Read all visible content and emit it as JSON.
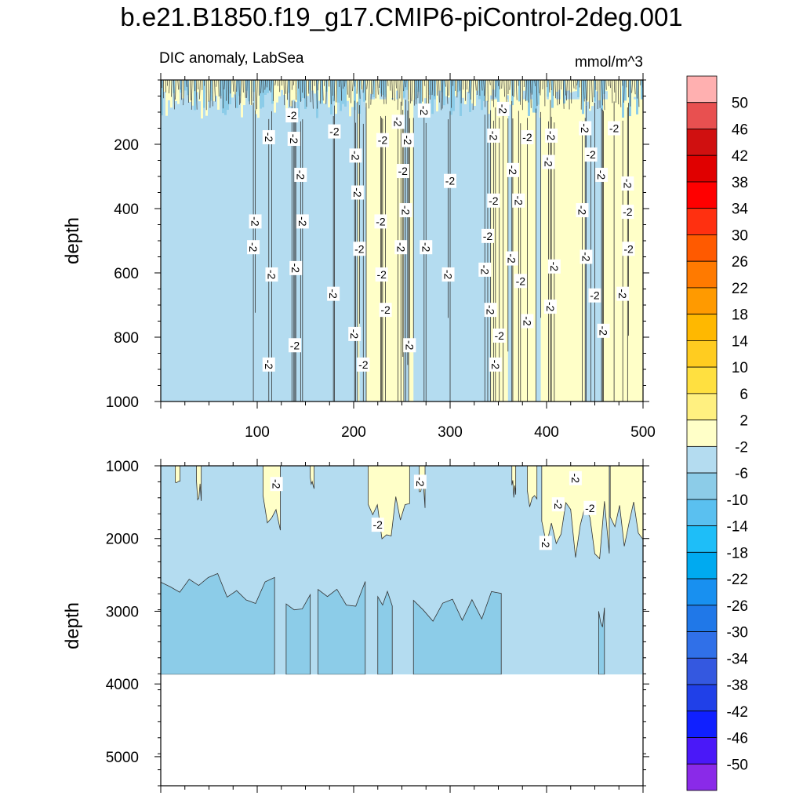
{
  "figure": {
    "title": "b.e21.B1850.f19_g17.CMIP6-piControl-2deg.001"
  },
  "chart_data": {
    "type": "heatmap",
    "variable": "DIC anomaly, LabSea",
    "units": "mmol/m^3",
    "xticks": [
      100,
      200,
      300,
      400,
      500
    ],
    "xlim": [
      0,
      500
    ],
    "panels": [
      {
        "name": "upper",
        "ylabel": "depth",
        "ylim": [
          0,
          1000
        ],
        "yticks": [
          200,
          400,
          600,
          800,
          1000
        ],
        "background_level": "-6 to -2",
        "bands": [
          {
            "x0": 204,
            "x1": 206
          },
          {
            "x0": 213,
            "x1": 252
          },
          {
            "x0": 257,
            "x1": 262
          },
          {
            "x0": 342,
            "x1": 500
          }
        ],
        "gaps": [
          {
            "x0": 360,
            "x1": 364
          },
          {
            "x0": 389,
            "x1": 394
          },
          {
            "x0": 440,
            "x1": 458
          }
        ],
        "contour_labels": [
          {
            "x": 136,
            "y": 110,
            "text": "-2"
          },
          {
            "x": 112,
            "y": 178,
            "text": "-2"
          },
          {
            "x": 138,
            "y": 183,
            "text": "-2"
          },
          {
            "x": 180,
            "y": 160,
            "text": "-2"
          },
          {
            "x": 246,
            "y": 130,
            "text": "-2"
          },
          {
            "x": 273,
            "y": 95,
            "text": "-2"
          },
          {
            "x": 230,
            "y": 187,
            "text": "-2"
          },
          {
            "x": 202,
            "y": 235,
            "text": "-2"
          },
          {
            "x": 256,
            "y": 187,
            "text": "-2"
          },
          {
            "x": 251,
            "y": 283,
            "text": "-2"
          },
          {
            "x": 145,
            "y": 295,
            "text": "-2"
          },
          {
            "x": 204,
            "y": 350,
            "text": "-2"
          },
          {
            "x": 300,
            "y": 314,
            "text": "-2"
          },
          {
            "x": 345,
            "y": 173,
            "text": "-2"
          },
          {
            "x": 355,
            "y": 90,
            "text": "-2"
          },
          {
            "x": 380,
            "y": 178,
            "text": "-2"
          },
          {
            "x": 405,
            "y": 173,
            "text": "-2"
          },
          {
            "x": 440,
            "y": 150,
            "text": "-2"
          },
          {
            "x": 470,
            "y": 150,
            "text": "-2"
          },
          {
            "x": 365,
            "y": 280,
            "text": "-2"
          },
          {
            "x": 402,
            "y": 255,
            "text": "-2"
          },
          {
            "x": 446,
            "y": 232,
            "text": "-2"
          },
          {
            "x": 457,
            "y": 295,
            "text": "-2"
          },
          {
            "x": 484,
            "y": 322,
            "text": "-2"
          },
          {
            "x": 345,
            "y": 375,
            "text": "-2"
          },
          {
            "x": 371,
            "y": 375,
            "text": "-2"
          },
          {
            "x": 437,
            "y": 405,
            "text": "-2"
          },
          {
            "x": 484,
            "y": 410,
            "text": "-2"
          },
          {
            "x": 98,
            "y": 440,
            "text": "-2"
          },
          {
            "x": 147,
            "y": 440,
            "text": "-2"
          },
          {
            "x": 228,
            "y": 440,
            "text": "-2"
          },
          {
            "x": 254,
            "y": 405,
            "text": "-2"
          },
          {
            "x": 96,
            "y": 520,
            "text": "-2"
          },
          {
            "x": 206,
            "y": 525,
            "text": "-2"
          },
          {
            "x": 249,
            "y": 520,
            "text": "-2"
          },
          {
            "x": 275,
            "y": 520,
            "text": "-2"
          },
          {
            "x": 339,
            "y": 485,
            "text": "-2"
          },
          {
            "x": 364,
            "y": 555,
            "text": "-2"
          },
          {
            "x": 441,
            "y": 550,
            "text": "-2"
          },
          {
            "x": 485,
            "y": 525,
            "text": "-2"
          },
          {
            "x": 115,
            "y": 605,
            "text": "-2"
          },
          {
            "x": 140,
            "y": 585,
            "text": "-2"
          },
          {
            "x": 229,
            "y": 605,
            "text": "-2"
          },
          {
            "x": 298,
            "y": 605,
            "text": "-2"
          },
          {
            "x": 336,
            "y": 590,
            "text": "-2"
          },
          {
            "x": 373,
            "y": 625,
            "text": "-2"
          },
          {
            "x": 408,
            "y": 580,
            "text": "-2"
          },
          {
            "x": 179,
            "y": 665,
            "text": "-2"
          },
          {
            "x": 233,
            "y": 715,
            "text": "-2"
          },
          {
            "x": 342,
            "y": 715,
            "text": "-2"
          },
          {
            "x": 404,
            "y": 705,
            "text": "-2"
          },
          {
            "x": 450,
            "y": 670,
            "text": "-2"
          },
          {
            "x": 479,
            "y": 665,
            "text": "-2"
          },
          {
            "x": 201,
            "y": 790,
            "text": "-2"
          },
          {
            "x": 351,
            "y": 795,
            "text": "-2"
          },
          {
            "x": 380,
            "y": 750,
            "text": "-2"
          },
          {
            "x": 459,
            "y": 780,
            "text": "-2"
          },
          {
            "x": 139,
            "y": 825,
            "text": "-2"
          },
          {
            "x": 258,
            "y": 825,
            "text": "-2"
          },
          {
            "x": 112,
            "y": 885,
            "text": "-2"
          },
          {
            "x": 210,
            "y": 885,
            "text": "-2"
          },
          {
            "x": 347,
            "y": 885,
            "text": "-2"
          }
        ]
      },
      {
        "name": "lower",
        "ylabel": "depth",
        "ylim": [
          1000,
          5400
        ],
        "yticks": [
          1000,
          2000,
          3000,
          4000,
          5000
        ],
        "seafloor_depth": 3870,
        "background_level": "-6 to -2",
        "plumes": [
          {
            "x0": 15,
            "x1": 20,
            "depth": 1600
          },
          {
            "x0": 37,
            "x1": 42,
            "depth": 1500
          },
          {
            "x0": 106,
            "x1": 124,
            "depth": 1950
          },
          {
            "x0": 155,
            "x1": 159,
            "depth": 1350
          },
          {
            "x0": 215,
            "x1": 258,
            "depth": 2100
          },
          {
            "x0": 268,
            "x1": 274,
            "depth": 1700
          },
          {
            "x0": 364,
            "x1": 368,
            "depth": 1500
          },
          {
            "x0": 380,
            "x1": 390,
            "depth": 1600
          },
          {
            "x0": 395,
            "x1": 465,
            "depth": 2300
          },
          {
            "x0": 466,
            "x1": 500,
            "depth": 2150
          }
        ],
        "deep_patches": [
          {
            "x0": 0,
            "x1": 118,
            "top": 2600
          },
          {
            "x0": 130,
            "x1": 155,
            "top": 2900
          },
          {
            "x0": 163,
            "x1": 212,
            "top": 2700
          },
          {
            "x0": 225,
            "x1": 240,
            "top": 2800
          },
          {
            "x0": 262,
            "x1": 353,
            "top": 2850
          },
          {
            "x0": 454,
            "x1": 460,
            "top": 3000
          }
        ],
        "contour_labels": [
          {
            "x": 120,
            "y": 1250,
            "text": "-2"
          },
          {
            "x": 269,
            "y": 1220,
            "text": "-2"
          },
          {
            "x": 225,
            "y": 1810,
            "text": "-2"
          },
          {
            "x": 430,
            "y": 1170,
            "text": "-2"
          },
          {
            "x": 412,
            "y": 1530,
            "text": "-2"
          },
          {
            "x": 445,
            "y": 1580,
            "text": "-2"
          },
          {
            "x": 399,
            "y": 2060,
            "text": "-2"
          }
        ]
      }
    ],
    "colorbar": {
      "labels": [
        "50",
        "46",
        "42",
        "38",
        "34",
        "30",
        "26",
        "22",
        "18",
        "14",
        "10",
        "6",
        "2",
        "-2",
        "-6",
        "-10",
        "-14",
        "-18",
        "-22",
        "-26",
        "-30",
        "-34",
        "-38",
        "-42",
        "-46",
        "-50"
      ],
      "colors": [
        "#ffb0b0",
        "#e85050",
        "#d01010",
        "#e00000",
        "#ff0000",
        "#ff3010",
        "#ff5a00",
        "#ff7a00",
        "#ff9a00",
        "#ffb800",
        "#ffcc20",
        "#ffe040",
        "#fff080",
        "#ffffc8",
        "#b4dcf0",
        "#8ccce8",
        "#5ac0f0",
        "#1ebef8",
        "#00aaf0",
        "#1890f0",
        "#2078e8",
        "#3070e8",
        "#3458e0",
        "#2040e8",
        "#1020ff",
        "#4a18f8",
        "#8a2ae8"
      ]
    }
  }
}
